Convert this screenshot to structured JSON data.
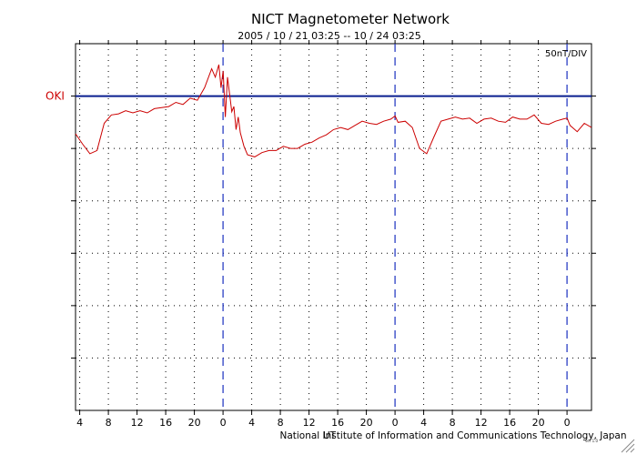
{
  "chart_data": {
    "type": "line",
    "title": "NICT Magnetometer Network",
    "subtitle": "2005 / 10 / 21   03:25 -- 10 / 24   03:25",
    "scale_label": "50nT/DIV",
    "station": "OKI",
    "footer": "National Institute of Information and Communications Technology, Japan",
    "overlap_label": "UT",
    "stamp": "ver 1.0",
    "x_unit": "hours from 2005-10-21 03:25 UT",
    "xlim": [
      0,
      72
    ],
    "ylim": [
      -300,
      50
    ],
    "y_unit": "nT",
    "y_div": 50,
    "baseline": 0,
    "x_tick_positions": [
      0.583,
      4.583,
      8.583,
      12.583,
      16.583,
      20.583,
      24.583,
      28.583,
      32.583,
      36.583,
      40.583,
      44.583,
      48.583,
      52.583,
      56.583,
      60.583,
      64.583,
      68.583
    ],
    "x_tick_labels": [
      "4",
      "8",
      "12",
      "16",
      "20",
      "0",
      "4",
      "8",
      "12",
      "16",
      "20",
      "0",
      "4",
      "8",
      "12",
      "16",
      "20",
      "0"
    ],
    "day_boundaries": [
      20.583,
      44.583,
      68.583
    ],
    "series": [
      {
        "name": "OKI",
        "color": "#cc0000",
        "x": [
          0,
          1,
          2,
          3,
          4,
          5,
          6,
          7,
          8,
          9,
          10,
          11,
          12,
          13,
          14,
          15,
          16,
          17,
          18,
          19,
          19.5,
          20,
          20.3,
          20.6,
          20.9,
          21.2,
          21.5,
          21.8,
          22.1,
          22.4,
          22.7,
          23,
          23.5,
          24,
          25,
          26,
          27,
          28,
          29,
          30,
          31,
          32,
          33,
          34,
          35,
          36,
          37,
          38,
          39,
          40,
          41,
          42,
          43,
          44,
          44.6,
          45,
          46,
          47,
          48,
          49,
          50,
          51,
          52,
          53,
          54,
          55,
          56,
          57,
          58,
          59,
          60,
          61,
          62,
          63,
          64,
          65,
          66,
          67,
          68,
          68.6,
          69,
          70,
          71,
          72
        ],
        "y": [
          -36,
          -46,
          -55,
          -52,
          -26,
          -18,
          -17,
          -14,
          -16,
          -14,
          -16,
          -12,
          -11,
          -10,
          -6,
          -8,
          -2,
          -4,
          8,
          26,
          18,
          30,
          8,
          24,
          -20,
          18,
          2,
          -15,
          -10,
          -32,
          -20,
          -35,
          -48,
          -56,
          -58,
          -54,
          -52,
          -52,
          -48,
          -50,
          -50,
          -46,
          -44,
          -40,
          -37,
          -32,
          -30,
          -32,
          -28,
          -24,
          -26,
          -27,
          -24,
          -22,
          -19,
          -25,
          -24,
          -30,
          -50,
          -55,
          -39,
          -24,
          -22,
          -20,
          -22,
          -21,
          -26,
          -22,
          -21,
          -24,
          -25,
          -20,
          -22,
          -22,
          -18,
          -26,
          -27,
          -24,
          -22,
          -21,
          -28,
          -34,
          -26,
          -30
        ]
      }
    ]
  }
}
